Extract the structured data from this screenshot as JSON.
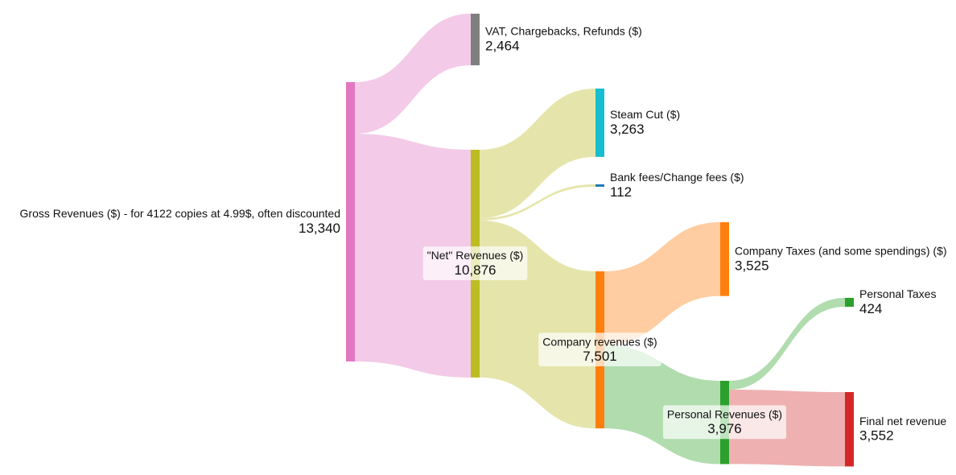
{
  "chart_data": {
    "type": "sankey",
    "nodes": [
      {
        "label": "Gross Revenues ($) - for 4122 copies at 4.99$, often discounted",
        "value": 13340,
        "value_label": "13,340",
        "color": "#e377c2"
      },
      {
        "label": "VAT, Chargebacks, Refunds ($)",
        "value": 2464,
        "value_label": "2,464",
        "color": "#7f7f7f"
      },
      {
        "label": "\"Net\" Revenues ($)",
        "value": 10876,
        "value_label": "10,876",
        "color": "#bcbd22"
      },
      {
        "label": "Steam Cut ($)",
        "value": 3263,
        "value_label": "3,263",
        "color": "#17becf"
      },
      {
        "label": "Bank fees/Change fees ($)",
        "value": 112,
        "value_label": "112",
        "color": "#1f77b4"
      },
      {
        "label": "Company revenues ($)",
        "value": 7501,
        "value_label": "7,501",
        "color": "#ff7f0e"
      },
      {
        "label": "Company Taxes (and some spendings) ($)",
        "value": 3525,
        "value_label": "3,525",
        "color": "#ff7f0e"
      },
      {
        "label": "Personal Taxes",
        "value": 424,
        "value_label": "424",
        "color": "#2ca02c"
      },
      {
        "label": "Personal Revenues ($)",
        "value": 3976,
        "value_label": "3,976",
        "color": "#2ca02c"
      },
      {
        "label": "Final net revenue",
        "value": 3552,
        "value_label": "3,552",
        "color": "#d62728"
      }
    ],
    "links": [
      {
        "source": 0,
        "target": 1,
        "value": 2464,
        "color": "#f1c1e3"
      },
      {
        "source": 0,
        "target": 2,
        "value": 10876,
        "color": "#f1c1e3"
      },
      {
        "source": 2,
        "target": 3,
        "value": 3263,
        "color": "#e1e19c"
      },
      {
        "source": 2,
        "target": 4,
        "value": 112,
        "color": "#e1e19c"
      },
      {
        "source": 2,
        "target": 5,
        "value": 7501,
        "color": "#e1e19c"
      },
      {
        "source": 5,
        "target": 6,
        "value": 3525,
        "color": "#ffc490"
      },
      {
        "source": 5,
        "target": 8,
        "value": 3976,
        "color": "#a2d6a0"
      },
      {
        "source": 8,
        "target": 7,
        "value": 424,
        "color": "#a2d6a0"
      },
      {
        "source": 8,
        "target": 9,
        "value": 3552,
        "color": "#eba2a2"
      }
    ]
  }
}
